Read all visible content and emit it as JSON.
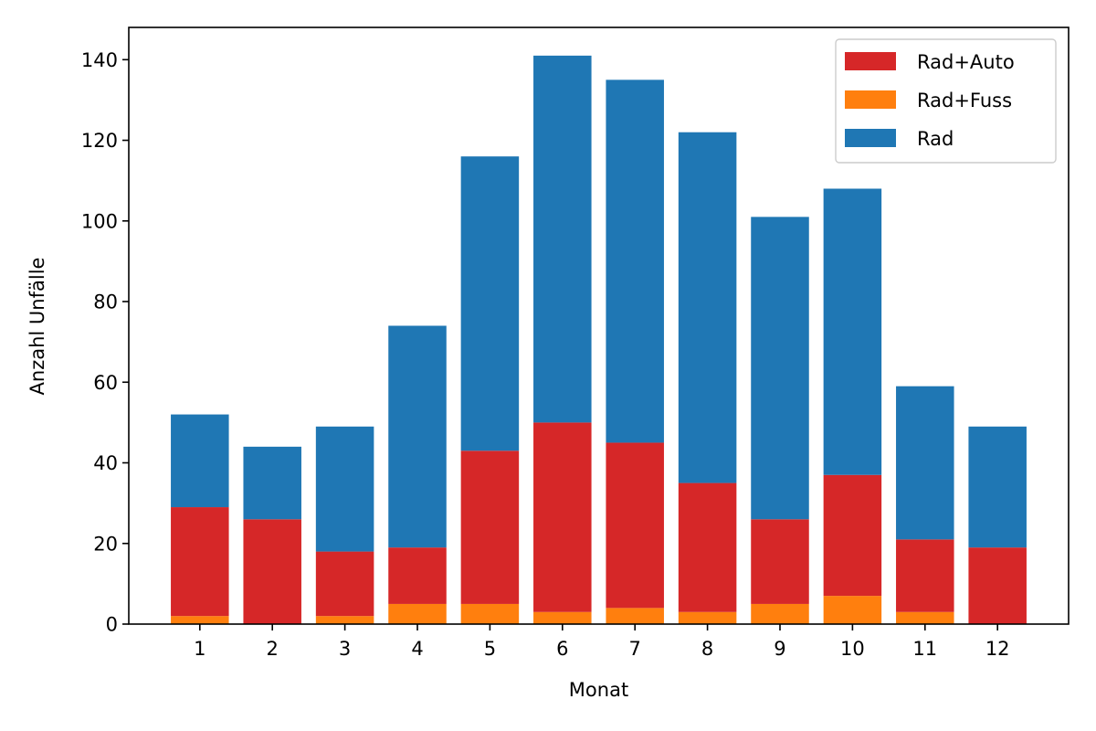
{
  "chart_data": {
    "type": "bar",
    "stacked": true,
    "title": "",
    "xlabel": "Monat",
    "ylabel": "Anzahl Unfälle",
    "categories": [
      "1",
      "2",
      "3",
      "4",
      "5",
      "6",
      "7",
      "8",
      "9",
      "10",
      "11",
      "12"
    ],
    "ylim": [
      0,
      148
    ],
    "yticks": [
      0,
      20,
      40,
      60,
      80,
      100,
      120,
      140
    ],
    "grid": false,
    "legend_position": "top-right",
    "stack_order": [
      "Rad+Fuss",
      "Rad+Auto",
      "Rad"
    ],
    "series": [
      {
        "name": "Rad+Auto",
        "color": "#d62728",
        "values": [
          27,
          26,
          16,
          14,
          38,
          47,
          41,
          32,
          21,
          30,
          18,
          19
        ]
      },
      {
        "name": "Rad+Fuss",
        "color": "#ff7f0e",
        "values": [
          2,
          0,
          2,
          5,
          5,
          3,
          4,
          3,
          5,
          7,
          3,
          0
        ]
      },
      {
        "name": "Rad",
        "color": "#1f77b4",
        "values": [
          23,
          18,
          31,
          55,
          73,
          91,
          90,
          87,
          75,
          71,
          38,
          30
        ]
      }
    ]
  }
}
